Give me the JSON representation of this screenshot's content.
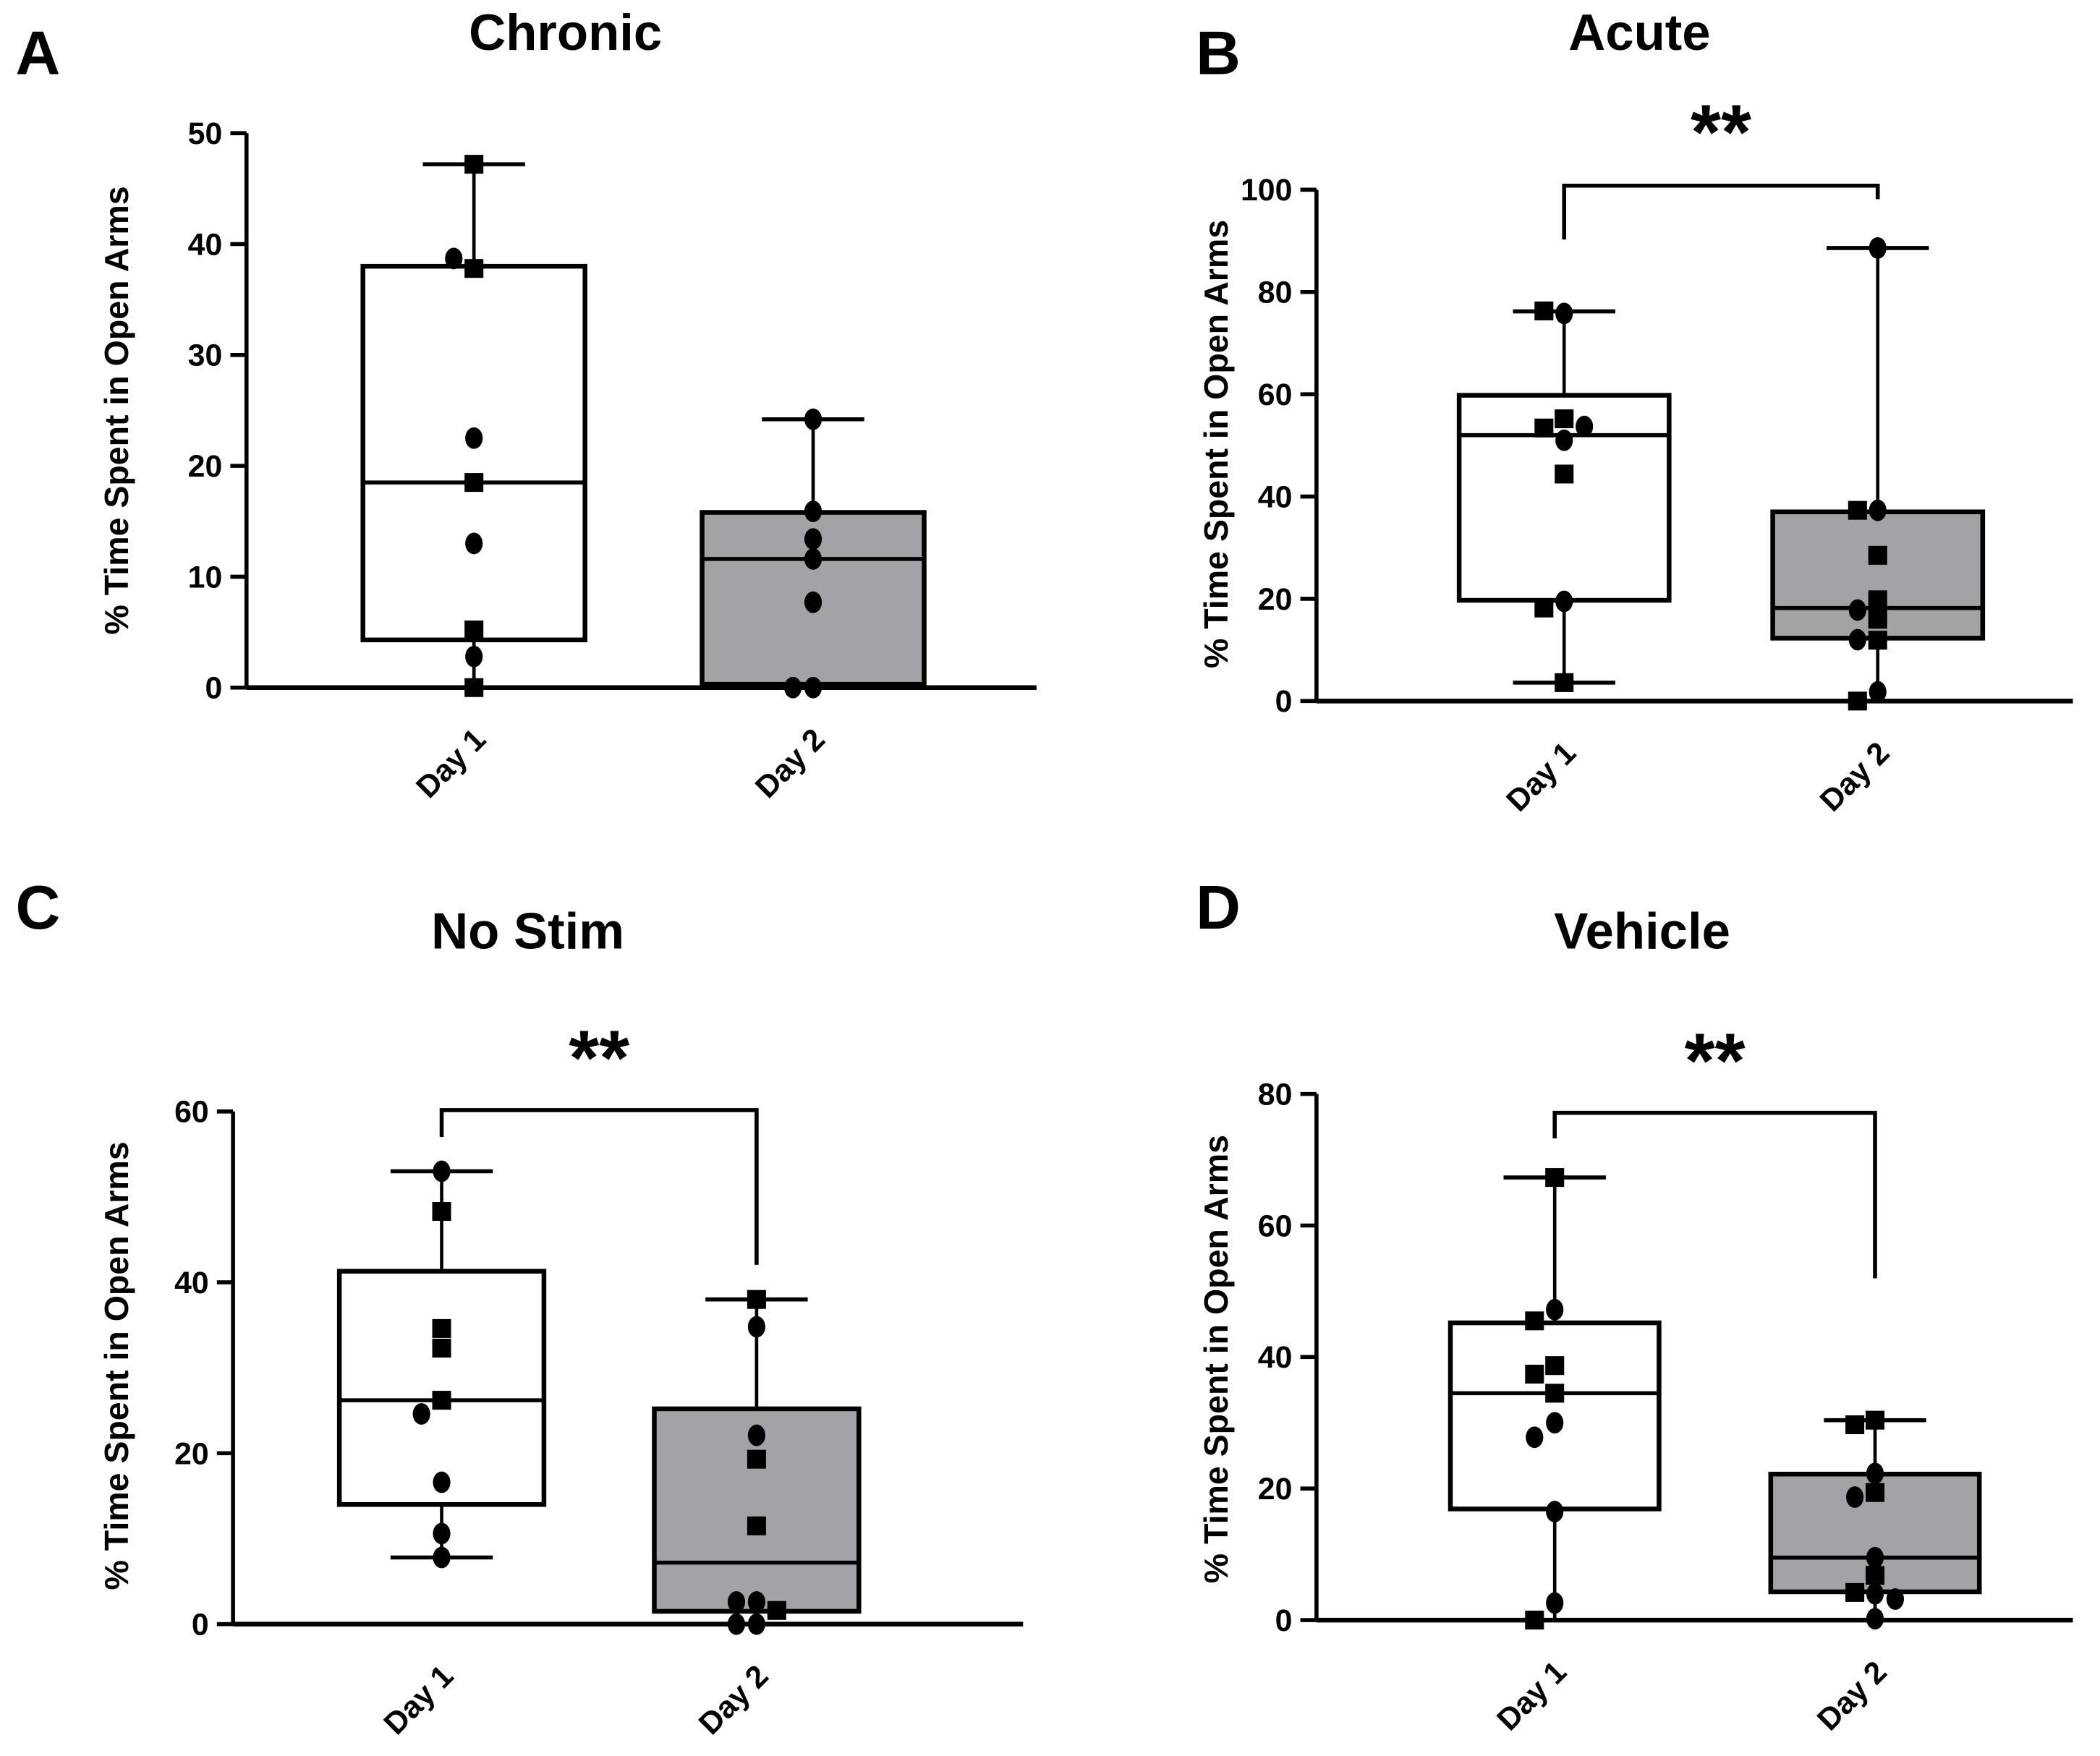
{
  "chart_data": [
    {
      "type": "box",
      "panel_letter": "A",
      "title": "Chronic",
      "ylabel": "% Time Spent in Open Arms",
      "categories": [
        "Day 1",
        "Day 2"
      ],
      "ylim": [
        0,
        50
      ],
      "yticks": [
        0,
        10,
        20,
        30,
        40,
        50
      ],
      "significance": null,
      "groups": [
        {
          "category": "Day 1",
          "fill": "#ffffff",
          "q1": 4.3,
          "median": 18.5,
          "q3": 38.0,
          "whisker_low": 0,
          "whisker_high": 47.2,
          "points": [
            {
              "v": 47.2,
              "m": "square"
            },
            {
              "v": 37.8,
              "m": "square"
            },
            {
              "v": 38.7,
              "m": "circle"
            },
            {
              "v": 22.5,
              "m": "circle"
            },
            {
              "v": 18.5,
              "m": "square"
            },
            {
              "v": 13.0,
              "m": "circle"
            },
            {
              "v": 5.2,
              "m": "square"
            },
            {
              "v": 2.8,
              "m": "circle"
            },
            {
              "v": 0,
              "m": "square"
            }
          ]
        },
        {
          "category": "Day 2",
          "fill": "#a3a3a7",
          "q1": 0.3,
          "median": 11.6,
          "q3": 15.8,
          "whisker_low": 0,
          "whisker_high": 24.2,
          "points": [
            {
              "v": 24.2,
              "m": "circle"
            },
            {
              "v": 15.9,
              "m": "circle"
            },
            {
              "v": 13.4,
              "m": "circle"
            },
            {
              "v": 11.6,
              "m": "circle"
            },
            {
              "v": 7.7,
              "m": "circle"
            },
            {
              "v": 0,
              "m": "circle"
            },
            {
              "v": 0,
              "m": "circle"
            }
          ]
        }
      ]
    },
    {
      "type": "box",
      "panel_letter": "B",
      "title": "Acute",
      "ylabel": "% Time Spent in Open Arms",
      "categories": [
        "Day 1",
        "Day 2"
      ],
      "ylim": [
        0,
        100
      ],
      "yticks": [
        0,
        20,
        40,
        60,
        80,
        100
      ],
      "significance": "**",
      "groups": [
        {
          "category": "Day 1",
          "fill": "#ffffff",
          "q1": 19.7,
          "median": 52.0,
          "q3": 59.8,
          "whisker_low": 3.6,
          "whisker_high": 76.2,
          "points": [
            {
              "v": 75.8,
              "m": "circle"
            },
            {
              "v": 76.3,
              "m": "square"
            },
            {
              "v": 55.2,
              "m": "square"
            },
            {
              "v": 53.4,
              "m": "square"
            },
            {
              "v": 53.7,
              "m": "circle"
            },
            {
              "v": 51.0,
              "m": "circle"
            },
            {
              "v": 44.4,
              "m": "square"
            },
            {
              "v": 19.5,
              "m": "circle"
            },
            {
              "v": 18.2,
              "m": "square"
            },
            {
              "v": 3.6,
              "m": "square"
            }
          ]
        },
        {
          "category": "Day 2",
          "fill": "#a3a3a7",
          "q1": 12.3,
          "median": 18.2,
          "q3": 37.0,
          "whisker_low": 0,
          "whisker_high": 88.6,
          "points": [
            {
              "v": 88.6,
              "m": "circle"
            },
            {
              "v": 37.3,
              "m": "circle"
            },
            {
              "v": 37.3,
              "m": "square"
            },
            {
              "v": 28.5,
              "m": "square"
            },
            {
              "v": 19.8,
              "m": "square"
            },
            {
              "v": 17.8,
              "m": "circle"
            },
            {
              "v": 16.0,
              "m": "square"
            },
            {
              "v": 11.9,
              "m": "square"
            },
            {
              "v": 12.0,
              "m": "circle"
            },
            {
              "v": 1.8,
              "m": "circle"
            },
            {
              "v": 0,
              "m": "square"
            }
          ]
        }
      ]
    },
    {
      "type": "box",
      "panel_letter": "C",
      "title": "No Stim",
      "ylabel": "% Time Spent in Open Arms",
      "categories": [
        "Day 1",
        "Day 2"
      ],
      "ylim": [
        0,
        60
      ],
      "yticks": [
        0,
        20,
        40,
        60
      ],
      "significance": "**",
      "groups": [
        {
          "category": "Day 1",
          "fill": "#ffffff",
          "q1": 14.0,
          "median": 26.2,
          "q3": 41.3,
          "whisker_low": 7.8,
          "whisker_high": 53.0,
          "points": [
            {
              "v": 53.0,
              "m": "circle"
            },
            {
              "v": 48.3,
              "m": "square"
            },
            {
              "v": 34.6,
              "m": "square"
            },
            {
              "v": 32.3,
              "m": "square"
            },
            {
              "v": 26.2,
              "m": "square"
            },
            {
              "v": 24.6,
              "m": "circle"
            },
            {
              "v": 16.6,
              "m": "circle"
            },
            {
              "v": 10.6,
              "m": "circle"
            },
            {
              "v": 7.8,
              "m": "circle"
            }
          ]
        },
        {
          "category": "Day 2",
          "fill": "#a3a3a7",
          "q1": 1.5,
          "median": 7.2,
          "q3": 25.2,
          "whisker_low": 0,
          "whisker_high": 38.0,
          "points": [
            {
              "v": 38.0,
              "m": "square"
            },
            {
              "v": 34.8,
              "m": "circle"
            },
            {
              "v": 22.1,
              "m": "circle"
            },
            {
              "v": 19.3,
              "m": "square"
            },
            {
              "v": 11.5,
              "m": "square"
            },
            {
              "v": 2.6,
              "m": "circle"
            },
            {
              "v": 2.6,
              "m": "circle"
            },
            {
              "v": 1.6,
              "m": "square"
            },
            {
              "v": 0,
              "m": "circle"
            },
            {
              "v": 0,
              "m": "circle"
            }
          ]
        }
      ]
    },
    {
      "type": "box",
      "panel_letter": "D",
      "title": "Vehicle",
      "ylabel": "% Time Spent in Open Arms",
      "categories": [
        "Day 1",
        "Day 2"
      ],
      "ylim": [
        0,
        80
      ],
      "yticks": [
        0,
        20,
        40,
        60,
        80
      ],
      "significance": "**",
      "groups": [
        {
          "category": "Day 1",
          "fill": "#ffffff",
          "q1": 16.9,
          "median": 34.5,
          "q3": 45.2,
          "whisker_low": 0,
          "whisker_high": 67.3,
          "points": [
            {
              "v": 67.3,
              "m": "square"
            },
            {
              "v": 47.2,
              "m": "circle"
            },
            {
              "v": 45.5,
              "m": "square"
            },
            {
              "v": 38.7,
              "m": "square"
            },
            {
              "v": 37.4,
              "m": "square"
            },
            {
              "v": 34.5,
              "m": "square"
            },
            {
              "v": 30.0,
              "m": "circle"
            },
            {
              "v": 27.8,
              "m": "circle"
            },
            {
              "v": 16.5,
              "m": "circle"
            },
            {
              "v": 2.6,
              "m": "circle"
            },
            {
              "v": 0,
              "m": "square"
            }
          ]
        },
        {
          "category": "Day 2",
          "fill": "#a3a3a7",
          "q1": 4.3,
          "median": 9.5,
          "q3": 22.2,
          "whisker_low": 0,
          "whisker_high": 30.4,
          "points": [
            {
              "v": 30.4,
              "m": "square"
            },
            {
              "v": 29.7,
              "m": "square"
            },
            {
              "v": 22.3,
              "m": "circle"
            },
            {
              "v": 19.4,
              "m": "square"
            },
            {
              "v": 18.7,
              "m": "circle"
            },
            {
              "v": 9.5,
              "m": "circle"
            },
            {
              "v": 6.8,
              "m": "square"
            },
            {
              "v": 4.2,
              "m": "square"
            },
            {
              "v": 4.0,
              "m": "circle"
            },
            {
              "v": 3.2,
              "m": "circle"
            },
            {
              "v": 0.2,
              "m": "circle"
            }
          ]
        }
      ]
    }
  ]
}
